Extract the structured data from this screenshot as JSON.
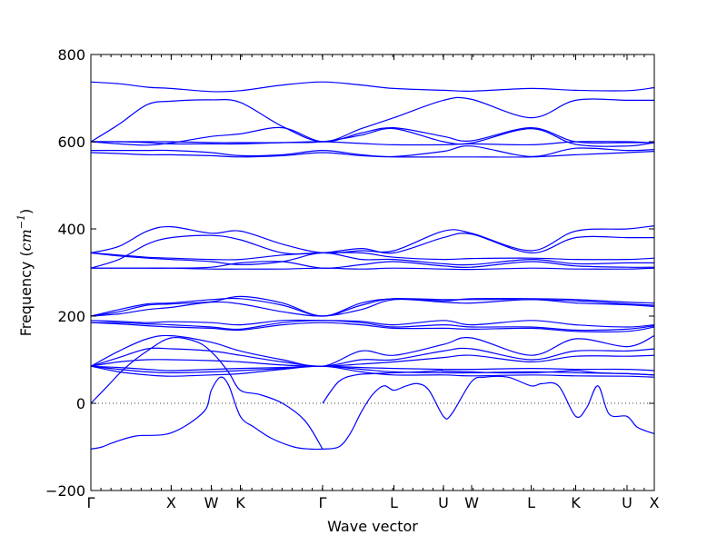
{
  "chart_data": {
    "type": "line",
    "title": "",
    "xlabel": "Wave vector",
    "ylabel": "Frequency",
    "ylabel_unit_base": "cm",
    "ylabel_unit_exp": "−1",
    "ylim": [
      -200,
      800
    ],
    "yticks": [
      -200,
      0,
      200,
      400,
      600,
      800
    ],
    "xlim": [
      0,
      1
    ],
    "high_symmetry_points": [
      {
        "label": "Γ",
        "x": 0.0
      },
      {
        "label": "X",
        "x": 0.1425
      },
      {
        "label": "W",
        "x": 0.2137
      },
      {
        "label": "K",
        "x": 0.2653
      },
      {
        "label": "Γ",
        "x": 0.4113
      },
      {
        "label": "L",
        "x": 0.5379
      },
      {
        "label": "U",
        "x": 0.6258
      },
      {
        "label": "W",
        "x": 0.6758
      },
      {
        "label": "L",
        "x": 0.7815
      },
      {
        "label": "K",
        "x": 0.8605
      },
      {
        "label": "U",
        "x": 0.9516
      },
      {
        "label": "X",
        "x": 1.0
      }
    ],
    "reference_line_y": 0,
    "series": [
      {
        "x": [
          0,
          0.05,
          0.1,
          0.1425,
          0.2137,
          0.2653,
          0.34,
          0.4113,
          0.48,
          0.5379,
          0.6258,
          0.6758,
          0.7815,
          0.8605,
          0.9516,
          1.0
        ],
        "values": [
          737,
          733,
          725,
          722,
          715,
          717,
          730,
          737,
          730,
          722,
          718,
          716,
          722,
          718,
          717,
          724
        ]
      },
      {
        "x": [
          0,
          0.05,
          0.1,
          0.1425,
          0.2137,
          0.2653,
          0.34,
          0.4113,
          0.48,
          0.5379,
          0.6258,
          0.6758,
          0.7815,
          0.8605,
          0.9516,
          1.0
        ],
        "values": [
          600,
          640,
          685,
          693,
          696,
          690,
          635,
          600,
          630,
          655,
          695,
          697,
          655,
          695,
          695,
          695
        ]
      },
      {
        "x": [
          0,
          0.05,
          0.1,
          0.1425,
          0.2137,
          0.2653,
          0.34,
          0.4113,
          0.48,
          0.5379,
          0.6258,
          0.6758,
          0.7815,
          0.8605,
          0.9516,
          1.0
        ],
        "values": [
          600,
          595,
          592,
          597,
          612,
          618,
          632,
          600,
          620,
          632,
          612,
          602,
          632,
          600,
          598,
          598
        ]
      },
      {
        "x": [
          0,
          0.05,
          0.1,
          0.1425,
          0.2137,
          0.2653,
          0.34,
          0.4113,
          0.48,
          0.5379,
          0.6258,
          0.6758,
          0.7815,
          0.8605,
          0.9516,
          1.0
        ],
        "values": [
          600,
          600,
          600,
          600,
          598,
          598,
          598,
          600,
          615,
          630,
          600,
          597,
          630,
          594,
          590,
          598
        ]
      },
      {
        "x": [
          0,
          0.05,
          0.1,
          0.1425,
          0.2137,
          0.2653,
          0.34,
          0.4113,
          0.48,
          0.5379,
          0.6258,
          0.6758,
          0.7815,
          0.8605,
          0.9516,
          1.0
        ],
        "values": [
          600,
          600,
          598,
          595,
          595,
          595,
          598,
          600,
          596,
          593,
          593,
          595,
          593,
          600,
          600,
          597
        ]
      },
      {
        "x": [
          0,
          0.05,
          0.1,
          0.1425,
          0.2137,
          0.2653,
          0.34,
          0.4113,
          0.48,
          0.5379,
          0.6258,
          0.6758,
          0.7815,
          0.8605,
          0.9516,
          1.0
        ],
        "values": [
          580,
          580,
          580,
          580,
          575,
          568,
          570,
          580,
          570,
          566,
          578,
          590,
          566,
          585,
          580,
          582
        ]
      },
      {
        "x": [
          0,
          0.05,
          0.1,
          0.1425,
          0.2137,
          0.2653,
          0.34,
          0.4113,
          0.48,
          0.5379,
          0.6258,
          0.6758,
          0.7815,
          0.8605,
          0.9516,
          1.0
        ],
        "values": [
          575,
          573,
          570,
          570,
          568,
          565,
          568,
          575,
          568,
          565,
          565,
          565,
          565,
          570,
          575,
          578
        ]
      },
      {
        "x": [
          0,
          0.05,
          0.1,
          0.1425,
          0.2137,
          0.2653,
          0.34,
          0.4113,
          0.48,
          0.5379,
          0.6258,
          0.6758,
          0.7815,
          0.8605,
          0.9516,
          1.0
        ],
        "values": [
          345,
          360,
          395,
          405,
          390,
          395,
          365,
          345,
          350,
          350,
          395,
          390,
          350,
          395,
          400,
          407
        ]
      },
      {
        "x": [
          0,
          0.05,
          0.1,
          0.1425,
          0.2137,
          0.2653,
          0.34,
          0.4113,
          0.48,
          0.5379,
          0.6258,
          0.6758,
          0.7815,
          0.8605,
          0.9516,
          1.0
        ],
        "values": [
          310,
          330,
          365,
          380,
          385,
          375,
          345,
          345,
          355,
          345,
          380,
          388,
          345,
          380,
          380,
          380
        ]
      },
      {
        "x": [
          0,
          0.05,
          0.1,
          0.1425,
          0.2137,
          0.2653,
          0.34,
          0.4113,
          0.48,
          0.5379,
          0.6258,
          0.6758,
          0.7815,
          0.8605,
          0.9516,
          1.0
        ],
        "values": [
          345,
          340,
          335,
          333,
          330,
          330,
          340,
          345,
          345,
          335,
          330,
          332,
          333,
          330,
          330,
          333
        ]
      },
      {
        "x": [
          0,
          0.05,
          0.1,
          0.1425,
          0.2137,
          0.2653,
          0.34,
          0.4113,
          0.48,
          0.5379,
          0.6258,
          0.6758,
          0.7815,
          0.8605,
          0.9516,
          1.0
        ],
        "values": [
          345,
          338,
          333,
          330,
          325,
          318,
          325,
          345,
          330,
          330,
          320,
          318,
          330,
          320,
          322,
          322
        ]
      },
      {
        "x": [
          0,
          0.05,
          0.1,
          0.1425,
          0.2137,
          0.2653,
          0.34,
          0.4113,
          0.48,
          0.5379,
          0.6258,
          0.6758,
          0.7815,
          0.8605,
          0.9516,
          1.0
        ],
        "values": [
          310,
          310,
          310,
          310,
          312,
          322,
          325,
          310,
          318,
          325,
          315,
          312,
          325,
          315,
          312,
          312
        ]
      },
      {
        "x": [
          0,
          0.05,
          0.1,
          0.1425,
          0.2137,
          0.2653,
          0.34,
          0.4113,
          0.48,
          0.5379,
          0.6258,
          0.6758,
          0.7815,
          0.8605,
          0.9516,
          1.0
        ],
        "values": [
          310,
          310,
          310,
          310,
          308,
          308,
          308,
          310,
          308,
          310,
          308,
          307,
          310,
          308,
          308,
          310
        ]
      },
      {
        "x": [
          0,
          0.05,
          0.1,
          0.1425,
          0.2137,
          0.2653,
          0.34,
          0.4113,
          0.48,
          0.5379,
          0.6258,
          0.6758,
          0.7815,
          0.8605,
          0.9516,
          1.0
        ],
        "values": [
          200,
          215,
          228,
          230,
          238,
          240,
          225,
          200,
          225,
          240,
          235,
          240,
          240,
          238,
          232,
          230
        ]
      },
      {
        "x": [
          0,
          0.05,
          0.1,
          0.1425,
          0.2137,
          0.2653,
          0.34,
          0.4113,
          0.48,
          0.5379,
          0.6258,
          0.6758,
          0.7815,
          0.8605,
          0.9516,
          1.0
        ],
        "values": [
          200,
          210,
          225,
          228,
          233,
          245,
          230,
          200,
          230,
          240,
          238,
          238,
          238,
          235,
          228,
          225
        ]
      },
      {
        "x": [
          0,
          0.05,
          0.1,
          0.1425,
          0.2137,
          0.2653,
          0.34,
          0.4113,
          0.48,
          0.5379,
          0.6258,
          0.6758,
          0.7815,
          0.8605,
          0.9516,
          1.0
        ],
        "values": [
          200,
          205,
          215,
          220,
          232,
          228,
          210,
          200,
          215,
          238,
          232,
          230,
          238,
          230,
          226,
          222
        ]
      },
      {
        "x": [
          0,
          0.05,
          0.1,
          0.1425,
          0.2137,
          0.2653,
          0.34,
          0.4113,
          0.48,
          0.5379,
          0.6258,
          0.6758,
          0.7815,
          0.8605,
          0.9516,
          1.0
        ],
        "values": [
          190,
          188,
          185,
          187,
          185,
          180,
          190,
          190,
          188,
          180,
          190,
          180,
          190,
          180,
          175,
          180
        ]
      },
      {
        "x": [
          0,
          0.05,
          0.1,
          0.1425,
          0.2137,
          0.2653,
          0.34,
          0.4113,
          0.48,
          0.5379,
          0.6258,
          0.6758,
          0.7815,
          0.8605,
          0.9516,
          1.0
        ],
        "values": [
          185,
          185,
          182,
          180,
          175,
          170,
          185,
          190,
          185,
          175,
          180,
          175,
          175,
          168,
          170,
          178
        ]
      },
      {
        "x": [
          0,
          0.05,
          0.1,
          0.1425,
          0.2137,
          0.2653,
          0.34,
          0.4113,
          0.48,
          0.5379,
          0.6258,
          0.6758,
          0.7815,
          0.8605,
          0.9516,
          1.0
        ],
        "values": [
          185,
          182,
          178,
          175,
          172,
          168,
          180,
          185,
          180,
          172,
          172,
          170,
          172,
          165,
          165,
          175
        ]
      },
      {
        "x": [
          0,
          0.05,
          0.1,
          0.1425,
          0.2137,
          0.2653,
          0.34,
          0.4113,
          0.48,
          0.5379,
          0.6258,
          0.6758,
          0.7815,
          0.8605,
          0.9516,
          1.0
        ],
        "values": [
          85,
          120,
          148,
          155,
          140,
          120,
          100,
          85,
          120,
          110,
          135,
          150,
          110,
          148,
          130,
          155
        ]
      },
      {
        "x": [
          0,
          0.05,
          0.1,
          0.1425,
          0.2137,
          0.2653,
          0.34,
          0.4113,
          0.48,
          0.5379,
          0.6258,
          0.6758,
          0.7815,
          0.8605,
          0.9516,
          1.0
        ],
        "values": [
          85,
          105,
          125,
          125,
          120,
          110,
          95,
          85,
          100,
          100,
          120,
          125,
          100,
          120,
          120,
          125
        ]
      },
      {
        "x": [
          0,
          0.05,
          0.1,
          0.1425,
          0.2137,
          0.2653,
          0.34,
          0.4113,
          0.48,
          0.5379,
          0.6258,
          0.6758,
          0.7815,
          0.8605,
          0.9516,
          1.0
        ],
        "values": [
          85,
          95,
          100,
          100,
          98,
          95,
          88,
          85,
          90,
          95,
          105,
          110,
          95,
          108,
          108,
          110
        ]
      },
      {
        "x": [
          0,
          0.05,
          0.1,
          0.1425,
          0.2137,
          0.2653,
          0.34,
          0.4113,
          0.48,
          0.5379,
          0.6258,
          0.6758,
          0.7815,
          0.8605,
          0.9516,
          1.0
        ],
        "values": [
          85,
          82,
          78,
          75,
          78,
          80,
          82,
          85,
          82,
          80,
          78,
          78,
          80,
          78,
          78,
          75
        ]
      },
      {
        "x": [
          0,
          0.05,
          0.1,
          0.1425,
          0.2137,
          0.2653,
          0.34,
          0.4113,
          0.48,
          0.5379,
          0.6258,
          0.6758,
          0.7815,
          0.8605,
          0.9516,
          1.0
        ],
        "values": [
          85,
          78,
          72,
          70,
          72,
          75,
          80,
          85,
          78,
          72,
          70,
          70,
          72,
          70,
          68,
          65
        ]
      },
      {
        "x": [
          0,
          0.05,
          0.1,
          0.1425,
          0.2137,
          0.2653,
          0.34,
          0.4113,
          0.48,
          0.5379,
          0.6258,
          0.6758,
          0.7815,
          0.8605,
          0.9516,
          1.0
        ],
        "values": [
          85,
          72,
          65,
          62,
          65,
          68,
          78,
          85,
          72,
          65,
          65,
          63,
          65,
          63,
          62,
          60
        ]
      },
      {
        "x": [
          0,
          0.03,
          0.06,
          0.1,
          0.1425,
          0.19,
          0.22,
          0.245,
          0.2653,
          0.3,
          0.34,
          0.38,
          0.4113
        ],
        "values": [
          0,
          40,
          80,
          120,
          150,
          140,
          110,
          70,
          30,
          20,
          0,
          -40,
          -105
        ]
      },
      {
        "x": [
          0.4113,
          0.44,
          0.47,
          0.5,
          0.5379,
          0.58,
          0.62,
          0.6258,
          0.6758,
          0.72,
          0.7815,
          0.82,
          0.8605,
          0.9,
          0.9516,
          1.0
        ],
        "values": [
          0,
          50,
          65,
          68,
          70,
          72,
          75,
          74,
          72,
          70,
          70,
          72,
          75,
          70,
          68,
          65
        ]
      },
      {
        "x": [
          0,
          0.02,
          0.04,
          0.08,
          0.1425,
          0.2,
          0.2137,
          0.23,
          0.245,
          0.2653,
          0.29,
          0.32,
          0.36,
          0.39,
          0.4113
        ],
        "values": [
          -105,
          -100,
          -90,
          -75,
          -68,
          -20,
          30,
          60,
          40,
          -30,
          -55,
          -80,
          -100,
          -105,
          -105
        ]
      },
      {
        "x": [
          0.4113,
          0.44,
          0.46,
          0.48,
          0.5,
          0.52,
          0.5379,
          0.56,
          0.58,
          0.6,
          0.6258,
          0.64,
          0.6758,
          0.7,
          0.74,
          0.7815,
          0.8,
          0.83,
          0.8605,
          0.88,
          0.9,
          0.92,
          0.9516,
          0.97,
          1.0
        ],
        "values": [
          -105,
          -100,
          -70,
          -20,
          20,
          40,
          30,
          40,
          45,
          30,
          -30,
          -25,
          50,
          60,
          60,
          40,
          45,
          40,
          -30,
          -10,
          40,
          -25,
          -30,
          -55,
          -70
        ]
      }
    ]
  }
}
